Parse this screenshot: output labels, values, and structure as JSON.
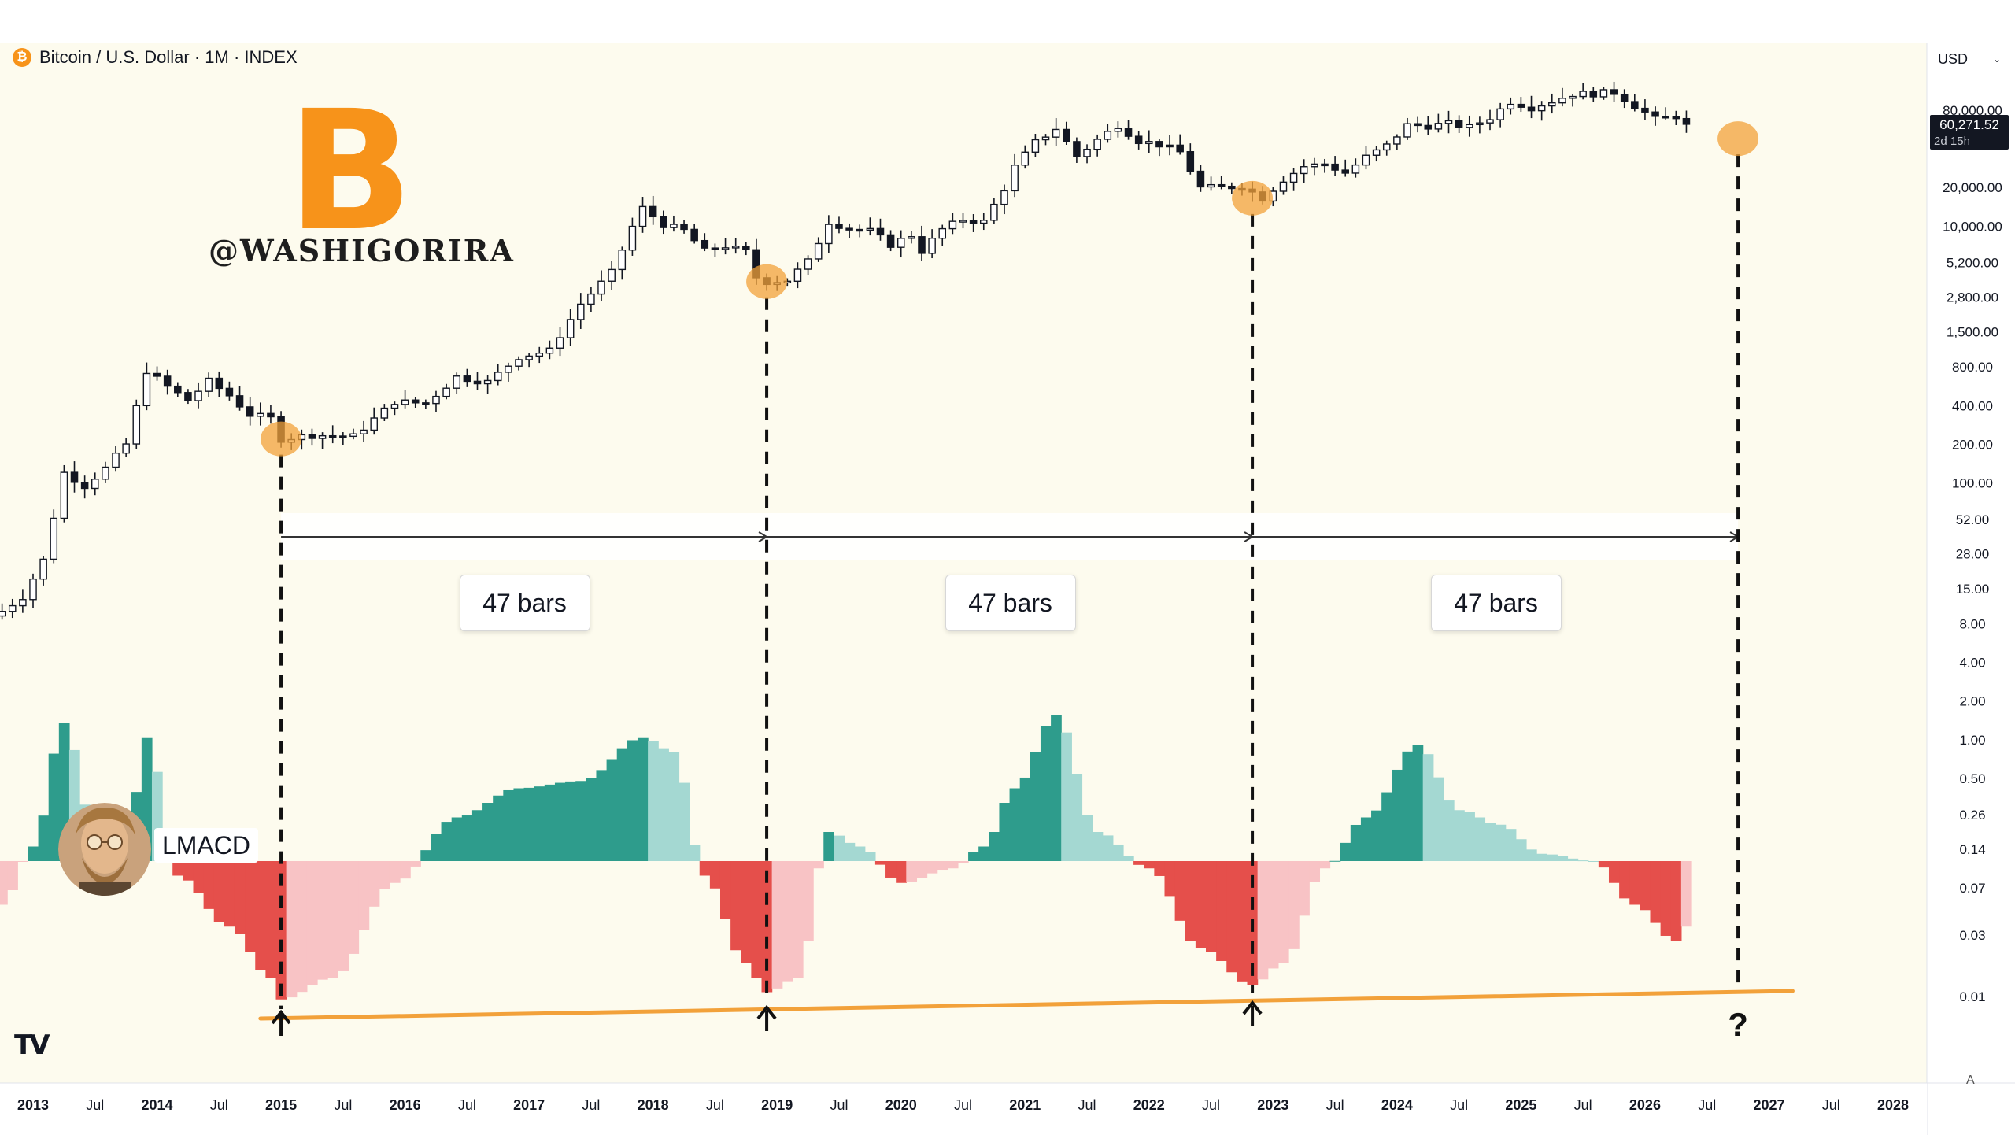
{
  "header": {
    "symbol_icon": "bitcoin-icon",
    "symbol_title": "Bitcoin / U.S. Dollar · 1M · INDEX",
    "currency": "USD",
    "currency_icon": "chevron-down-icon"
  },
  "watermark": {
    "logo_glyph": "B",
    "handle": "@WASHIGORIRA"
  },
  "indicator": {
    "name": "LMACD",
    "avatar_icon": "portrait-avatar-icon"
  },
  "footer": {
    "tradingview_logo": "TV",
    "auto_scale": "A"
  },
  "colors": {
    "background": "#fdfbee",
    "price_axis_bg": "#ffffff",
    "accent_orange": "#f2a13a",
    "hist_up_strong": "#2e9c8c",
    "hist_up_weak": "#a4d8d2",
    "hist_down_strong": "#e54f4b",
    "hist_down_weak": "#f8c3c5",
    "candle_up": "#ffffff",
    "candle_down": "#131722",
    "last_price_tag": "#131722"
  },
  "chart_data": {
    "type": "candlestick",
    "title": "Bitcoin / U.S. Dollar · 1M · INDEX",
    "y_scale": "log",
    "ylim": [
      0.005,
      300000
    ],
    "y_ticks": [
      {
        "v": 80000,
        "label": "80,000.00"
      },
      {
        "v": 20000,
        "label": "20,000.00"
      },
      {
        "v": 10000,
        "label": "10,000.00"
      },
      {
        "v": 5200,
        "label": "5,200.00"
      },
      {
        "v": 2800,
        "label": "2,800.00"
      },
      {
        "v": 1500,
        "label": "1,500.00"
      },
      {
        "v": 800,
        "label": "800.00"
      },
      {
        "v": 400,
        "label": "400.00"
      },
      {
        "v": 200,
        "label": "200.00"
      },
      {
        "v": 100,
        "label": "100.00"
      },
      {
        "v": 52,
        "label": "52.00"
      },
      {
        "v": 28,
        "label": "28.00"
      },
      {
        "v": 15,
        "label": "15.00"
      },
      {
        "v": 8,
        "label": "8.00"
      },
      {
        "v": 4,
        "label": "4.00"
      },
      {
        "v": 2,
        "label": "2.00"
      },
      {
        "v": 1,
        "label": "1.00"
      },
      {
        "v": 0.5,
        "label": "0.50"
      },
      {
        "v": 0.26,
        "label": "0.26"
      },
      {
        "v": 0.14,
        "label": "0.14"
      },
      {
        "v": 0.07,
        "label": "0.07"
      },
      {
        "v": 0.03,
        "label": "0.03"
      },
      {
        "v": 0.01,
        "label": "0.01"
      }
    ],
    "last_price": {
      "value": "60,271.52",
      "countdown": "2d 15h",
      "v": 60271.52
    },
    "x_ticks": [
      {
        "m": "2013-01",
        "label": "2013",
        "bold": true
      },
      {
        "m": "2013-07",
        "label": "Jul",
        "bold": false
      },
      {
        "m": "2014-01",
        "label": "2014",
        "bold": true
      },
      {
        "m": "2014-07",
        "label": "Jul",
        "bold": false
      },
      {
        "m": "2015-01",
        "label": "2015",
        "bold": true
      },
      {
        "m": "2015-07",
        "label": "Jul",
        "bold": false
      },
      {
        "m": "2016-01",
        "label": "2016",
        "bold": true
      },
      {
        "m": "2016-07",
        "label": "Jul",
        "bold": false
      },
      {
        "m": "2017-01",
        "label": "2017",
        "bold": true
      },
      {
        "m": "2017-07",
        "label": "Jul",
        "bold": false
      },
      {
        "m": "2018-01",
        "label": "2018",
        "bold": true
      },
      {
        "m": "2018-07",
        "label": "Jul",
        "bold": false
      },
      {
        "m": "2019-01",
        "label": "2019",
        "bold": true
      },
      {
        "m": "2019-07",
        "label": "Jul",
        "bold": false
      },
      {
        "m": "2020-01",
        "label": "2020",
        "bold": true
      },
      {
        "m": "2020-07",
        "label": "Jul",
        "bold": false
      },
      {
        "m": "2021-01",
        "label": "2021",
        "bold": true
      },
      {
        "m": "2021-07",
        "label": "Jul",
        "bold": false
      },
      {
        "m": "2022-01",
        "label": "2022",
        "bold": true
      },
      {
        "m": "2022-07",
        "label": "Jul",
        "bold": false
      },
      {
        "m": "2023-01",
        "label": "2023",
        "bold": true
      },
      {
        "m": "2023-07",
        "label": "Jul",
        "bold": false
      },
      {
        "m": "2024-01",
        "label": "2024",
        "bold": true
      },
      {
        "m": "2024-07",
        "label": "Jul",
        "bold": false
      },
      {
        "m": "2025-01",
        "label": "2025",
        "bold": true
      },
      {
        "m": "2025-07",
        "label": "Jul",
        "bold": false
      },
      {
        "m": "2026-01",
        "label": "2026",
        "bold": true
      },
      {
        "m": "2026-07",
        "label": "Jul",
        "bold": false
      },
      {
        "m": "2027-01",
        "label": "2027",
        "bold": true
      },
      {
        "m": "2027-07",
        "label": "Jul",
        "bold": false
      },
      {
        "m": "2028-01",
        "label": "2028",
        "bold": true
      }
    ],
    "price_path": [
      [
        "2012-10",
        10
      ],
      [
        "2012-12",
        13
      ],
      [
        "2013-02",
        25
      ],
      [
        "2013-04",
        120
      ],
      [
        "2013-06",
        95
      ],
      [
        "2013-08",
        130
      ],
      [
        "2013-10",
        200
      ],
      [
        "2013-12",
        750
      ],
      [
        "2014-02",
        560
      ],
      [
        "2014-04",
        440
      ],
      [
        "2014-06",
        620
      ],
      [
        "2014-08",
        480
      ],
      [
        "2014-10",
        340
      ],
      [
        "2014-12",
        318
      ],
      [
        "2015-01",
        220
      ],
      [
        "2015-04",
        236
      ],
      [
        "2015-08",
        230
      ],
      [
        "2015-12",
        430
      ],
      [
        "2016-03",
        416
      ],
      [
        "2016-06",
        670
      ],
      [
        "2016-09",
        610
      ],
      [
        "2016-12",
        960
      ],
      [
        "2017-03",
        1070
      ],
      [
        "2017-06",
        2480
      ],
      [
        "2017-09",
        4340
      ],
      [
        "2017-11",
        9900
      ],
      [
        "2017-12",
        13800
      ],
      [
        "2018-02",
        10300
      ],
      [
        "2018-04",
        9240
      ],
      [
        "2018-06",
        6400
      ],
      [
        "2018-08",
        7000
      ],
      [
        "2018-10",
        6300
      ],
      [
        "2018-11",
        4000
      ],
      [
        "2018-12",
        3700
      ],
      [
        "2019-02",
        3800
      ],
      [
        "2019-04",
        5300
      ],
      [
        "2019-06",
        10800
      ],
      [
        "2019-08",
        9600
      ],
      [
        "2019-10",
        9150
      ],
      [
        "2019-12",
        7200
      ],
      [
        "2020-02",
        8500
      ],
      [
        "2020-03",
        6400
      ],
      [
        "2020-05",
        9450
      ],
      [
        "2020-07",
        11300
      ],
      [
        "2020-09",
        10800
      ],
      [
        "2020-11",
        19700
      ],
      [
        "2020-12",
        29000
      ],
      [
        "2021-02",
        45000
      ],
      [
        "2021-04",
        57700
      ],
      [
        "2021-06",
        35000
      ],
      [
        "2021-08",
        47100
      ],
      [
        "2021-10",
        61300
      ],
      [
        "2021-12",
        46300
      ],
      [
        "2022-02",
        43200
      ],
      [
        "2022-04",
        37700
      ],
      [
        "2022-06",
        19900
      ],
      [
        "2022-08",
        20000
      ],
      [
        "2022-10",
        20500
      ],
      [
        "2022-12",
        16500
      ],
      [
        "2023-02",
        23100
      ],
      [
        "2023-04",
        29200
      ],
      [
        "2023-06",
        30500
      ],
      [
        "2023-08",
        26000
      ],
      [
        "2023-10",
        34500
      ],
      [
        "2023-12",
        42300
      ],
      [
        "2024-02",
        61100
      ],
      [
        "2024-04",
        60600
      ],
      [
        "2024-06",
        62700
      ],
      [
        "2024-08",
        58900
      ],
      [
        "2024-10",
        70200
      ],
      [
        "2024-12",
        93400
      ],
      [
        "2025-02",
        84300
      ],
      [
        "2025-04",
        94200
      ],
      [
        "2025-06",
        107000
      ],
      [
        "2025-08",
        108000
      ],
      [
        "2025-10",
        110000
      ],
      [
        "2025-12",
        87000
      ],
      [
        "2026-02",
        68000
      ],
      [
        "2026-04",
        72000
      ],
      [
        "2026-05",
        60271
      ]
    ],
    "cycle_lows": [
      {
        "m": "2015-01",
        "v": 220
      },
      {
        "m": "2018-12",
        "v": 3700
      },
      {
        "m": "2022-11",
        "v": 16500
      },
      {
        "m": "2026-10",
        "v": 48000
      }
    ],
    "intervals": [
      {
        "from": "2015-01",
        "to": "2018-12",
        "label": "47 bars"
      },
      {
        "from": "2018-12",
        "to": "2022-11",
        "label": "47 bars"
      },
      {
        "from": "2022-11",
        "to": "2026-10",
        "label": "47 bars"
      }
    ],
    "future_marker": "?",
    "lmacd_path": [
      [
        "2012-10",
        -0.3
      ],
      [
        "2013-01",
        0.1
      ],
      [
        "2013-04",
        0.95
      ],
      [
        "2013-07",
        0.2
      ],
      [
        "2013-10",
        0.1
      ],
      [
        "2013-12",
        0.85
      ],
      [
        "2014-03",
        -0.1
      ],
      [
        "2014-08",
        -0.45
      ],
      [
        "2014-12",
        -0.8
      ],
      [
        "2015-01",
        -0.95
      ],
      [
        "2015-06",
        -0.8
      ],
      [
        "2015-12",
        -0.15
      ],
      [
        "2016-06",
        0.3
      ],
      [
        "2016-12",
        0.5
      ],
      [
        "2017-06",
        0.55
      ],
      [
        "2017-12",
        0.85
      ],
      [
        "2018-03",
        0.75
      ],
      [
        "2018-06",
        -0.1
      ],
      [
        "2018-10",
        -0.7
      ],
      [
        "2018-12",
        -0.9
      ],
      [
        "2019-03",
        -0.8
      ],
      [
        "2019-06",
        0.2
      ],
      [
        "2019-09",
        0.1
      ],
      [
        "2020-01",
        -0.15
      ],
      [
        "2020-06",
        -0.05
      ],
      [
        "2020-09",
        0.1
      ],
      [
        "2020-12",
        0.5
      ],
      [
        "2021-04",
        1.0
      ],
      [
        "2021-08",
        0.2
      ],
      [
        "2022-01",
        -0.05
      ],
      [
        "2022-06",
        -0.6
      ],
      [
        "2022-11",
        -0.85
      ],
      [
        "2023-02",
        -0.7
      ],
      [
        "2023-06",
        -0.05
      ],
      [
        "2023-10",
        0.3
      ],
      [
        "2024-03",
        0.8
      ],
      [
        "2024-07",
        0.35
      ],
      [
        "2024-11",
        0.25
      ],
      [
        "2025-03",
        0.05
      ],
      [
        "2025-08",
        0.0
      ],
      [
        "2025-12",
        -0.3
      ],
      [
        "2026-04",
        -0.55
      ],
      [
        "2026-05",
        -0.45
      ]
    ],
    "support_line": {
      "from": "2014-11",
      "to": "2027-01",
      "orientation": "rising"
    }
  }
}
